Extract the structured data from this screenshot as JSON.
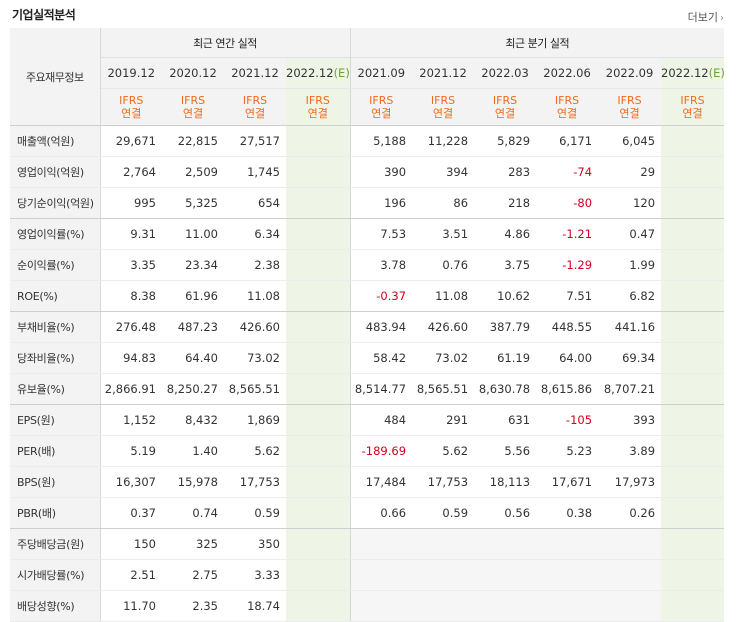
{
  "header": {
    "title": "기업실적분석",
    "more_label": "더보기"
  },
  "table": {
    "label_header": "주요재무정보",
    "annual_label": "최근 연간 실적",
    "quarter_label": "최근 분기 실적",
    "annual_periods": [
      {
        "label": "2019.12",
        "est": ""
      },
      {
        "label": "2020.12",
        "est": ""
      },
      {
        "label": "2021.12",
        "est": ""
      },
      {
        "label": "2022.12",
        "est": "(E)"
      }
    ],
    "quarter_periods": [
      {
        "label": "2021.09",
        "est": ""
      },
      {
        "label": "2021.12",
        "est": ""
      },
      {
        "label": "2022.03",
        "est": ""
      },
      {
        "label": "2022.06",
        "est": ""
      },
      {
        "label": "2022.09",
        "est": ""
      },
      {
        "label": "2022.12",
        "est": "(E)"
      }
    ],
    "type_top": "IFRS",
    "type_bottom": "연결",
    "rows": [
      {
        "label": "매출액(억원)",
        "annual": [
          "29,671",
          "22,815",
          "27,517",
          ""
        ],
        "quarter": [
          "5,188",
          "11,228",
          "5,829",
          "6,171",
          "6,045",
          ""
        ]
      },
      {
        "label": "영업이익(억원)",
        "annual": [
          "2,764",
          "2,509",
          "1,745",
          ""
        ],
        "quarter": [
          "390",
          "394",
          "283",
          "-74",
          "29",
          ""
        ]
      },
      {
        "label": "당기순이익(억원)",
        "annual": [
          "995",
          "5,325",
          "654",
          ""
        ],
        "quarter": [
          "196",
          "86",
          "218",
          "-80",
          "120",
          ""
        ]
      },
      {
        "label": "영업이익률(%)",
        "annual": [
          "9.31",
          "11.00",
          "6.34",
          ""
        ],
        "quarter": [
          "7.53",
          "3.51",
          "4.86",
          "-1.21",
          "0.47",
          ""
        ]
      },
      {
        "label": "순이익률(%)",
        "annual": [
          "3.35",
          "23.34",
          "2.38",
          ""
        ],
        "quarter": [
          "3.78",
          "0.76",
          "3.75",
          "-1.29",
          "1.99",
          ""
        ]
      },
      {
        "label": "ROE(%)",
        "annual": [
          "8.38",
          "61.96",
          "11.08",
          ""
        ],
        "quarter": [
          "-0.37",
          "11.08",
          "10.62",
          "7.51",
          "6.82",
          ""
        ]
      },
      {
        "label": "부채비율(%)",
        "annual": [
          "276.48",
          "487.23",
          "426.60",
          ""
        ],
        "quarter": [
          "483.94",
          "426.60",
          "387.79",
          "448.55",
          "441.16",
          ""
        ]
      },
      {
        "label": "당좌비율(%)",
        "annual": [
          "94.83",
          "64.40",
          "73.02",
          ""
        ],
        "quarter": [
          "58.42",
          "73.02",
          "61.19",
          "64.00",
          "69.34",
          ""
        ]
      },
      {
        "label": "유보율(%)",
        "annual": [
          "2,866.91",
          "8,250.27",
          "8,565.51",
          ""
        ],
        "quarter": [
          "8,514.77",
          "8,565.51",
          "8,630.78",
          "8,615.86",
          "8,707.21",
          ""
        ]
      },
      {
        "label": "EPS(원)",
        "annual": [
          "1,152",
          "8,432",
          "1,869",
          ""
        ],
        "quarter": [
          "484",
          "291",
          "631",
          "-105",
          "393",
          ""
        ]
      },
      {
        "label": "PER(배)",
        "annual": [
          "5.19",
          "1.40",
          "5.62",
          ""
        ],
        "quarter": [
          "-189.69",
          "5.62",
          "5.56",
          "5.23",
          "3.89",
          ""
        ]
      },
      {
        "label": "BPS(원)",
        "annual": [
          "16,307",
          "15,978",
          "17,753",
          ""
        ],
        "quarter": [
          "17,484",
          "17,753",
          "18,113",
          "17,671",
          "17,973",
          ""
        ]
      },
      {
        "label": "PBR(배)",
        "annual": [
          "0.37",
          "0.74",
          "0.59",
          ""
        ],
        "quarter": [
          "0.66",
          "0.59",
          "0.56",
          "0.38",
          "0.26",
          ""
        ]
      },
      {
        "label": "주당배당금(원)",
        "annual": [
          "150",
          "325",
          "350",
          ""
        ],
        "quarter": [
          "",
          "",
          "",
          "",
          "",
          ""
        ]
      },
      {
        "label": "시가배당률(%)",
        "annual": [
          "2.51",
          "2.75",
          "3.33",
          ""
        ],
        "quarter": [
          "",
          "",
          "",
          "",
          "",
          ""
        ]
      },
      {
        "label": "배당성향(%)",
        "annual": [
          "11.70",
          "2.35",
          "18.74",
          ""
        ],
        "quarter": [
          "",
          "",
          "",
          "",
          "",
          ""
        ]
      }
    ]
  }
}
